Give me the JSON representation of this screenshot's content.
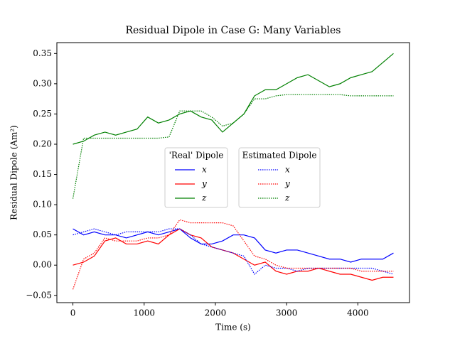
{
  "chart_data": {
    "type": "line",
    "title": "Residual Dipole in Case G: Many Variables",
    "xlabel": "Time (s)",
    "ylabel": "Residual Dipole (Am²)",
    "xlim": [
      -225,
      4725
    ],
    "ylim": [
      -0.062,
      0.368
    ],
    "xticks": [
      0,
      1000,
      2000,
      3000,
      4000
    ],
    "yticks": [
      {
        "value": -0.05,
        "label": "−0.05"
      },
      {
        "value": 0,
        "label": "0.00"
      },
      0.05,
      {
        "value": 0.1,
        "label": "0.10"
      },
      0.15,
      {
        "value": 0.2,
        "label": "0.20"
      },
      0.25,
      {
        "value": 0.3,
        "label": "0.30"
      },
      0.35
    ],
    "grid": false,
    "legend": "center",
    "legend_titles": [
      "'Real' Dipole",
      "Estimated Dipole"
    ],
    "x": [
      0,
      150,
      300,
      450,
      600,
      750,
      900,
      1050,
      1200,
      1350,
      1500,
      1650,
      1800,
      1950,
      2100,
      2250,
      2400,
      2550,
      2700,
      2850,
      3000,
      3150,
      3300,
      3450,
      3600,
      3750,
      3900,
      4050,
      4200,
      4350,
      4500
    ],
    "series": [
      {
        "name": "x",
        "legend": 0,
        "style": "solid",
        "color": "#0000ff",
        "values": [
          0.06,
          0.05,
          0.055,
          0.05,
          0.05,
          0.045,
          0.05,
          0.055,
          0.05,
          0.055,
          0.06,
          0.045,
          0.035,
          0.035,
          0.04,
          0.05,
          0.05,
          0.045,
          0.025,
          0.02,
          0.025,
          0.025,
          0.02,
          0.015,
          0.01,
          0.01,
          0.005,
          0.01,
          0.01,
          0.01,
          0.02
        ]
      },
      {
        "name": "y",
        "legend": 0,
        "style": "solid",
        "color": "#ff0000",
        "values": [
          0.0,
          0.005,
          0.015,
          0.04,
          0.045,
          0.035,
          0.035,
          0.04,
          0.035,
          0.05,
          0.06,
          0.05,
          0.045,
          0.03,
          0.025,
          0.02,
          0.01,
          0.0,
          0.005,
          -0.01,
          -0.015,
          -0.01,
          -0.01,
          -0.005,
          -0.01,
          -0.015,
          -0.015,
          -0.02,
          -0.025,
          -0.02,
          -0.02
        ]
      },
      {
        "name": "z",
        "legend": 0,
        "style": "solid",
        "color": "#008000",
        "values": [
          0.2,
          0.205,
          0.215,
          0.22,
          0.215,
          0.22,
          0.225,
          0.245,
          0.235,
          0.24,
          0.25,
          0.255,
          0.245,
          0.24,
          0.22,
          0.235,
          0.25,
          0.28,
          0.29,
          0.29,
          0.3,
          0.31,
          0.315,
          0.305,
          0.295,
          0.3,
          0.31,
          0.315,
          0.32,
          0.335,
          0.35
        ]
      },
      {
        "name": "x",
        "legend": 1,
        "style": "dotted",
        "color": "#0000ff",
        "values": [
          0.05,
          0.055,
          0.06,
          0.055,
          0.05,
          0.055,
          0.055,
          0.055,
          0.055,
          0.06,
          0.06,
          0.05,
          0.035,
          0.03,
          0.025,
          0.02,
          0.015,
          -0.015,
          0.0,
          -0.005,
          -0.005,
          -0.01,
          -0.005,
          -0.005,
          -0.005,
          -0.005,
          -0.005,
          -0.005,
          -0.005,
          -0.01,
          -0.015
        ]
      },
      {
        "name": "y",
        "legend": 1,
        "style": "dotted",
        "color": "#ff0000",
        "values": [
          -0.04,
          0.01,
          0.02,
          0.045,
          0.04,
          0.04,
          0.04,
          0.045,
          0.045,
          0.05,
          0.075,
          0.07,
          0.07,
          0.07,
          0.07,
          0.065,
          0.04,
          0.015,
          0.01,
          0.0,
          -0.005,
          -0.005,
          -0.005,
          -0.005,
          -0.005,
          -0.005,
          -0.005,
          -0.01,
          -0.01,
          -0.01,
          -0.01
        ]
      },
      {
        "name": "z",
        "legend": 1,
        "style": "dotted",
        "color": "#008000",
        "values": [
          0.11,
          0.21,
          0.21,
          0.21,
          0.21,
          0.21,
          0.21,
          0.21,
          0.21,
          0.212,
          0.255,
          0.255,
          0.255,
          0.245,
          0.23,
          0.235,
          0.25,
          0.275,
          0.275,
          0.28,
          0.282,
          0.282,
          0.282,
          0.282,
          0.282,
          0.282,
          0.28,
          0.28,
          0.28,
          0.28,
          0.28
        ]
      }
    ]
  }
}
